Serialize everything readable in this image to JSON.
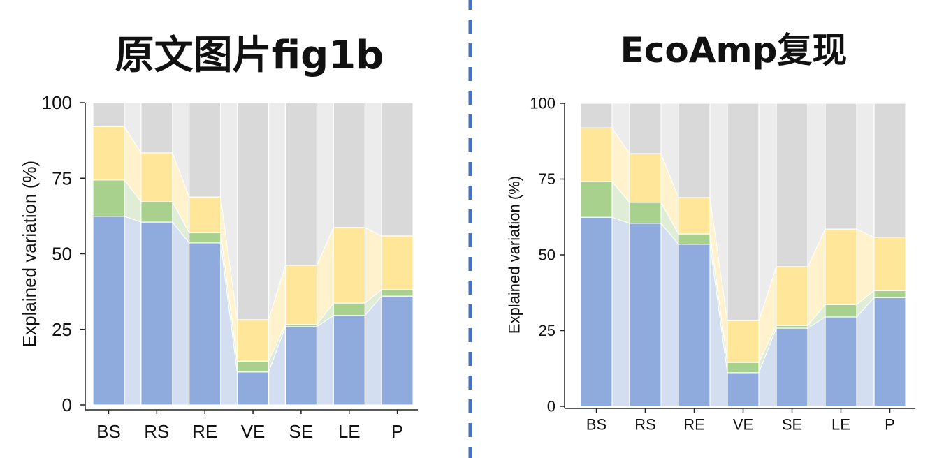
{
  "divider": {
    "color": "#4472c4"
  },
  "chart_data": [
    {
      "type": "bar",
      "stacked": true,
      "title": "原文图片fig1b",
      "xlabel": "",
      "ylabel": "Explained variation (%)",
      "ylim": [
        0,
        100
      ],
      "yticks": [
        0,
        25,
        50,
        75,
        100
      ],
      "grid": false,
      "legend": "none",
      "categories": [
        "BS",
        "RS",
        "RE",
        "VE",
        "SE",
        "LE",
        "P"
      ],
      "series": [
        {
          "color": "#8faadc",
          "flow_color": "#d3def0",
          "values": [
            62.4,
            60.5,
            53.6,
            10.9,
            25.9,
            29.6,
            36.0
          ]
        },
        {
          "color": "#a9d18e",
          "flow_color": "#dfedd6",
          "values": [
            12.0,
            6.7,
            3.4,
            3.6,
            0.7,
            4.1,
            2.1
          ]
        },
        {
          "color": "#ffe699",
          "flow_color": "#fff2cc",
          "values": [
            17.7,
            16.2,
            11.8,
            13.7,
            19.6,
            25.0,
            17.8
          ]
        },
        {
          "color": "#d9d9d9",
          "flow_color": "#ececec",
          "values": [
            7.9,
            16.6,
            31.2,
            71.8,
            53.8,
            41.3,
            44.1
          ]
        }
      ]
    },
    {
      "type": "bar",
      "stacked": true,
      "title": "EcoAmp复现",
      "xlabel": "",
      "ylabel": "Explained variation (%)",
      "ylim": [
        0,
        100
      ],
      "yticks": [
        0,
        25,
        50,
        75,
        100
      ],
      "grid": false,
      "legend": "none",
      "categories": [
        "BS",
        "RS",
        "RE",
        "VE",
        "SE",
        "LE",
        "P"
      ],
      "series": [
        {
          "color": "#8faadc",
          "flow_color": "#d3def0",
          "values": [
            62.4,
            60.4,
            53.5,
            11.1,
            25.8,
            29.5,
            35.9
          ]
        },
        {
          "color": "#a9d18e",
          "flow_color": "#dfedd6",
          "values": [
            11.8,
            6.9,
            3.4,
            3.4,
            0.9,
            4.1,
            2.3
          ]
        },
        {
          "color": "#ffe699",
          "flow_color": "#fff2cc",
          "values": [
            17.7,
            16.1,
            12.0,
            13.8,
            19.4,
            24.9,
            17.6
          ]
        },
        {
          "color": "#d9d9d9",
          "flow_color": "#ececec",
          "values": [
            8.1,
            16.6,
            31.1,
            71.7,
            53.9,
            41.5,
            44.2
          ]
        }
      ]
    }
  ]
}
